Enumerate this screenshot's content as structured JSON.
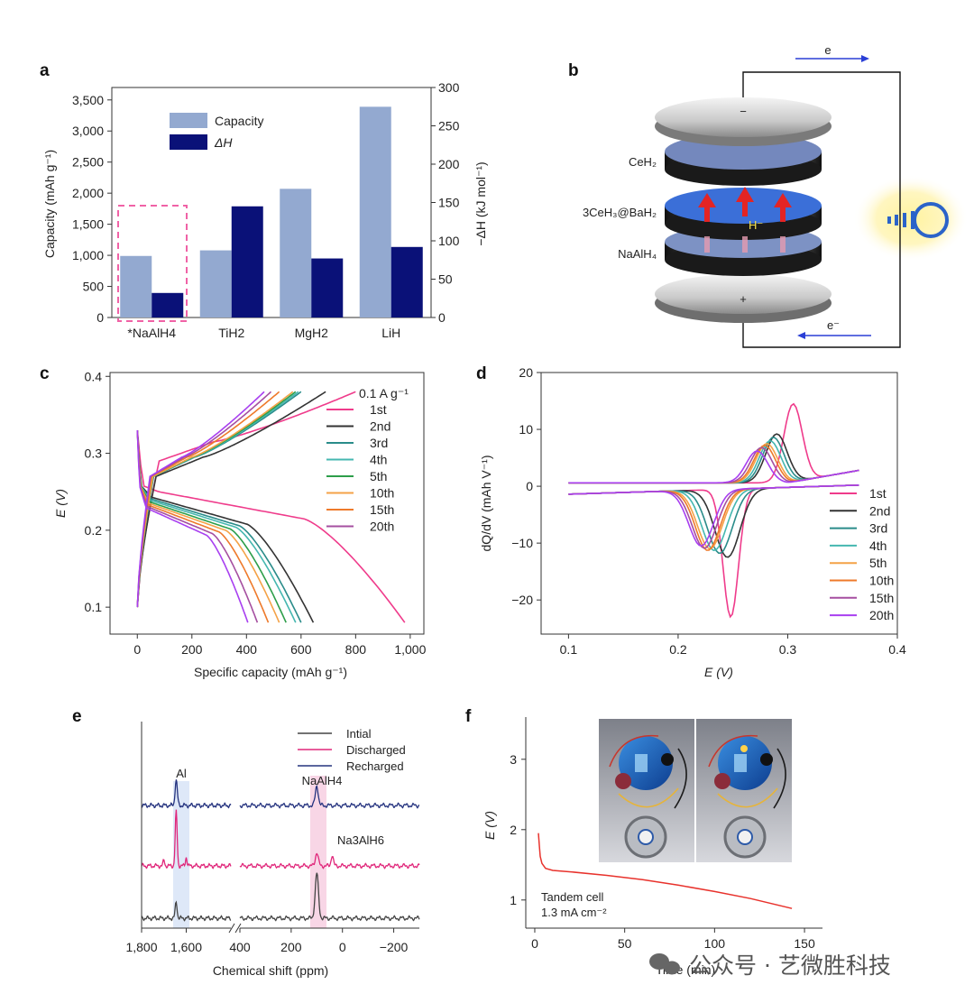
{
  "watermark": "公众号 · 艺微胜科技",
  "chart_data": [
    {
      "panel": "a",
      "type": "bar",
      "categories": [
        "*NaAlH4",
        "TiH2",
        "MgH2",
        "LiH"
      ],
      "series": [
        {
          "name": "Capacity",
          "values": [
            990,
            1080,
            2070,
            3390
          ],
          "color": "#93a9d0",
          "axis": "left"
        },
        {
          "name": "ΔH",
          "values": [
            32,
            145,
            77,
            92
          ],
          "color": "#0a1178",
          "axis": "right"
        }
      ],
      "ylabel": "Capacity (mAh g⁻¹)",
      "ylabel_right": "−ΔH (kJ mol⁻¹)",
      "ylim": [
        0,
        3700
      ],
      "ylim_right": [
        0,
        300
      ],
      "yticks": [
        "0",
        "500",
        "1,000",
        "1,500",
        "2,000",
        "2,500",
        "3,000",
        "3,500"
      ],
      "yticks_right": [
        "0",
        "50",
        "100",
        "150",
        "200",
        "250",
        "300"
      ],
      "legend": [
        "Capacity",
        "ΔH"
      ],
      "legend_position": "top-left",
      "highlight": "*NaAlH4"
    },
    {
      "panel": "c",
      "type": "line",
      "title": "0.1 A g⁻¹",
      "xlabel": "Specific capacity (mAh g⁻¹)",
      "ylabel": "E (V)",
      "xlim": [
        -100,
        1050
      ],
      "ylim": [
        0.065,
        0.405
      ],
      "xticks": [
        "0",
        "200",
        "400",
        "600",
        "800",
        "1,000"
      ],
      "yticks": [
        "0.1",
        "0.2",
        "0.3",
        "0.4"
      ],
      "series": [
        {
          "name": "1st",
          "color": "#ef3b8b",
          "discharge_capacity": 980,
          "charge_capacity": 800
        },
        {
          "name": "2nd",
          "color": "#333333",
          "discharge_capacity": 645,
          "charge_capacity": 690
        },
        {
          "name": "3rd",
          "color": "#2a8c8a",
          "discharge_capacity": 600,
          "charge_capacity": 600
        },
        {
          "name": "4th",
          "color": "#45b7b0",
          "discharge_capacity": 580,
          "charge_capacity": 590
        },
        {
          "name": "5th",
          "color": "#2d9e4a",
          "discharge_capacity": 545,
          "charge_capacity": 580
        },
        {
          "name": "10th",
          "color": "#f4a247",
          "discharge_capacity": 520,
          "charge_capacity": 570
        },
        {
          "name": "15th",
          "color": "#ee7a2b",
          "discharge_capacity": 480,
          "charge_capacity": 520
        },
        {
          "name": "20th",
          "color": "#a54fa0",
          "discharge_capacity": 440,
          "charge_capacity": 490
        }
      ],
      "extra_series_color": "#a83ff0",
      "legend_position": "top-right"
    },
    {
      "panel": "d",
      "type": "line",
      "xlabel": "E (V)",
      "ylabel": "dQ/dV (mAh V⁻¹)",
      "xlim": [
        0.075,
        0.4
      ],
      "ylim": [
        -26,
        20
      ],
      "xticks": [
        "0.1",
        "0.2",
        "0.3",
        "0.4"
      ],
      "yticks": [
        "20",
        "10",
        "0",
        "−10",
        "−20"
      ],
      "series": [
        {
          "name": "1st",
          "color": "#ef3b8b",
          "anodic_peak": [
            0.305,
            14.5
          ],
          "cathodic_peak": [
            0.248,
            -23
          ]
        },
        {
          "name": "2nd",
          "color": "#333333",
          "anodic_peak": [
            0.29,
            9.2
          ],
          "cathodic_peak": [
            0.245,
            -12.5
          ]
        },
        {
          "name": "3rd",
          "color": "#2a8c8a",
          "anodic_peak": [
            0.287,
            8.6
          ],
          "cathodic_peak": [
            0.238,
            -11.8
          ]
        },
        {
          "name": "4th",
          "color": "#45b7b0",
          "anodic_peak": [
            0.284,
            8.0
          ],
          "cathodic_peak": [
            0.233,
            -11.3
          ]
        },
        {
          "name": "5th",
          "color": "#f4a247",
          "anodic_peak": [
            0.281,
            7.5
          ],
          "cathodic_peak": [
            0.229,
            -11.0
          ]
        },
        {
          "name": "10th",
          "color": "#ee7a2b",
          "anodic_peak": [
            0.279,
            7.2
          ],
          "cathodic_peak": [
            0.227,
            -11.3
          ]
        },
        {
          "name": "15th",
          "color": "#a54fa0",
          "anodic_peak": [
            0.276,
            6.8
          ],
          "cathodic_peak": [
            0.224,
            -10.9
          ]
        },
        {
          "name": "20th",
          "color": "#a83ff0",
          "anodic_peak": [
            0.272,
            6.2
          ],
          "cathodic_peak": [
            0.221,
            -10.5
          ]
        }
      ],
      "legend_position": "bottom-right"
    },
    {
      "panel": "e",
      "type": "line",
      "xlabel": "Chemical shift (ppm)",
      "xticks": [
        "1,800",
        "1,600",
        "400",
        "200",
        "0",
        "−200"
      ],
      "broken_axis": true,
      "series": [
        {
          "name": "Intial",
          "color": "#444444"
        },
        {
          "name": "Discharged",
          "color": "#e0267a"
        },
        {
          "name": "Recharged",
          "color": "#25337f"
        }
      ],
      "peaks": [
        {
          "label": "Al",
          "ppm": 1640
        },
        {
          "label": "NaAlH4",
          "ppm": 100
        },
        {
          "label": "Na3AlH6",
          "ppm": -40
        }
      ],
      "legend_position": "top-right"
    },
    {
      "panel": "f",
      "type": "line",
      "xlabel": "Time (min)",
      "ylabel": "E (V)",
      "xlim": [
        -5,
        160
      ],
      "ylim": [
        0.6,
        3.6
      ],
      "xticks": [
        "0",
        "50",
        "100",
        "150"
      ],
      "yticks": [
        "1",
        "2",
        "3"
      ],
      "series": [
        {
          "name": "",
          "color": "#e8322c",
          "x": [
            2,
            2.5,
            3,
            4,
            6,
            10,
            20,
            40,
            60,
            80,
            100,
            120,
            143
          ],
          "y": [
            1.95,
            1.78,
            1.62,
            1.52,
            1.45,
            1.42,
            1.4,
            1.35,
            1.29,
            1.21,
            1.12,
            1.02,
            0.88
          ]
        }
      ],
      "annotation": [
        "Tandem cell",
        "1.3 mA cm⁻²"
      ]
    }
  ],
  "diagram_b": {
    "panel": "b",
    "layers": [
      "CeH₂",
      "3CeH₃@BaH₂",
      "NaAlH₄"
    ],
    "terminals": [
      "−",
      "+"
    ],
    "ion": "H⁻",
    "electron_top": "e",
    "electron_bottom": "e⁻"
  },
  "labels": {
    "a": "a",
    "b": "b",
    "c": "c",
    "d": "d",
    "e": "e",
    "f": "f"
  }
}
